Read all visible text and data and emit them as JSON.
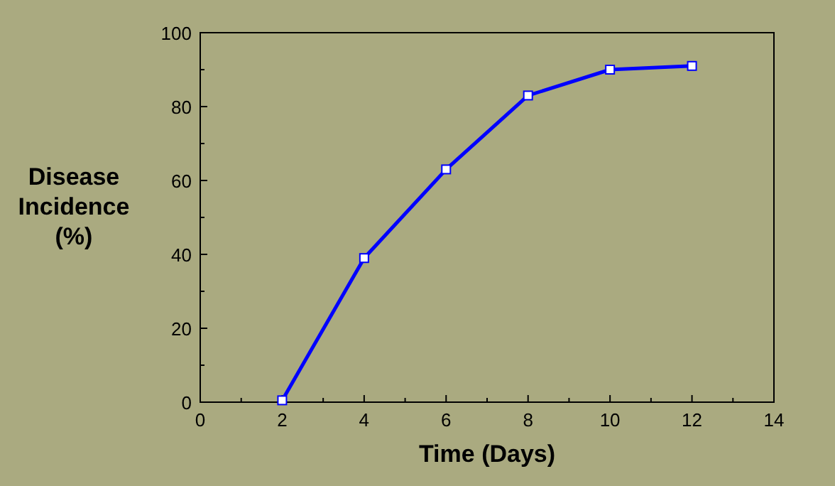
{
  "chart_data": {
    "type": "line",
    "xlabel": "Time (Days)",
    "ylabel": "Disease Incidence (%)",
    "x": [
      2,
      4,
      6,
      8,
      10,
      12
    ],
    "series": [
      {
        "color": "#0000ff",
        "values": [
          0.5,
          39,
          63,
          83,
          90,
          91
        ]
      }
    ],
    "xlim": [
      0,
      14
    ],
    "xticks": [
      0,
      {
        "value": 1,
        "label": null
      },
      2,
      {
        "value": 3,
        "label": null
      },
      4,
      {
        "value": 5,
        "label": null
      },
      6,
      {
        "value": 7,
        "label": null
      },
      8,
      {
        "value": 9,
        "label": null
      },
      10,
      {
        "value": 11,
        "label": null
      },
      12,
      {
        "value": 13,
        "label": null
      },
      14
    ],
    "ylim": [
      0,
      100
    ],
    "yticks": [
      0,
      {
        "value": 10,
        "label": null
      },
      20,
      {
        "value": 30,
        "label": null
      },
      40,
      {
        "value": 50,
        "label": null
      },
      60,
      {
        "value": 70,
        "label": null
      },
      80,
      {
        "value": 90,
        "label": null
      },
      100
    ],
    "marker": "square",
    "line_style": "solid"
  }
}
